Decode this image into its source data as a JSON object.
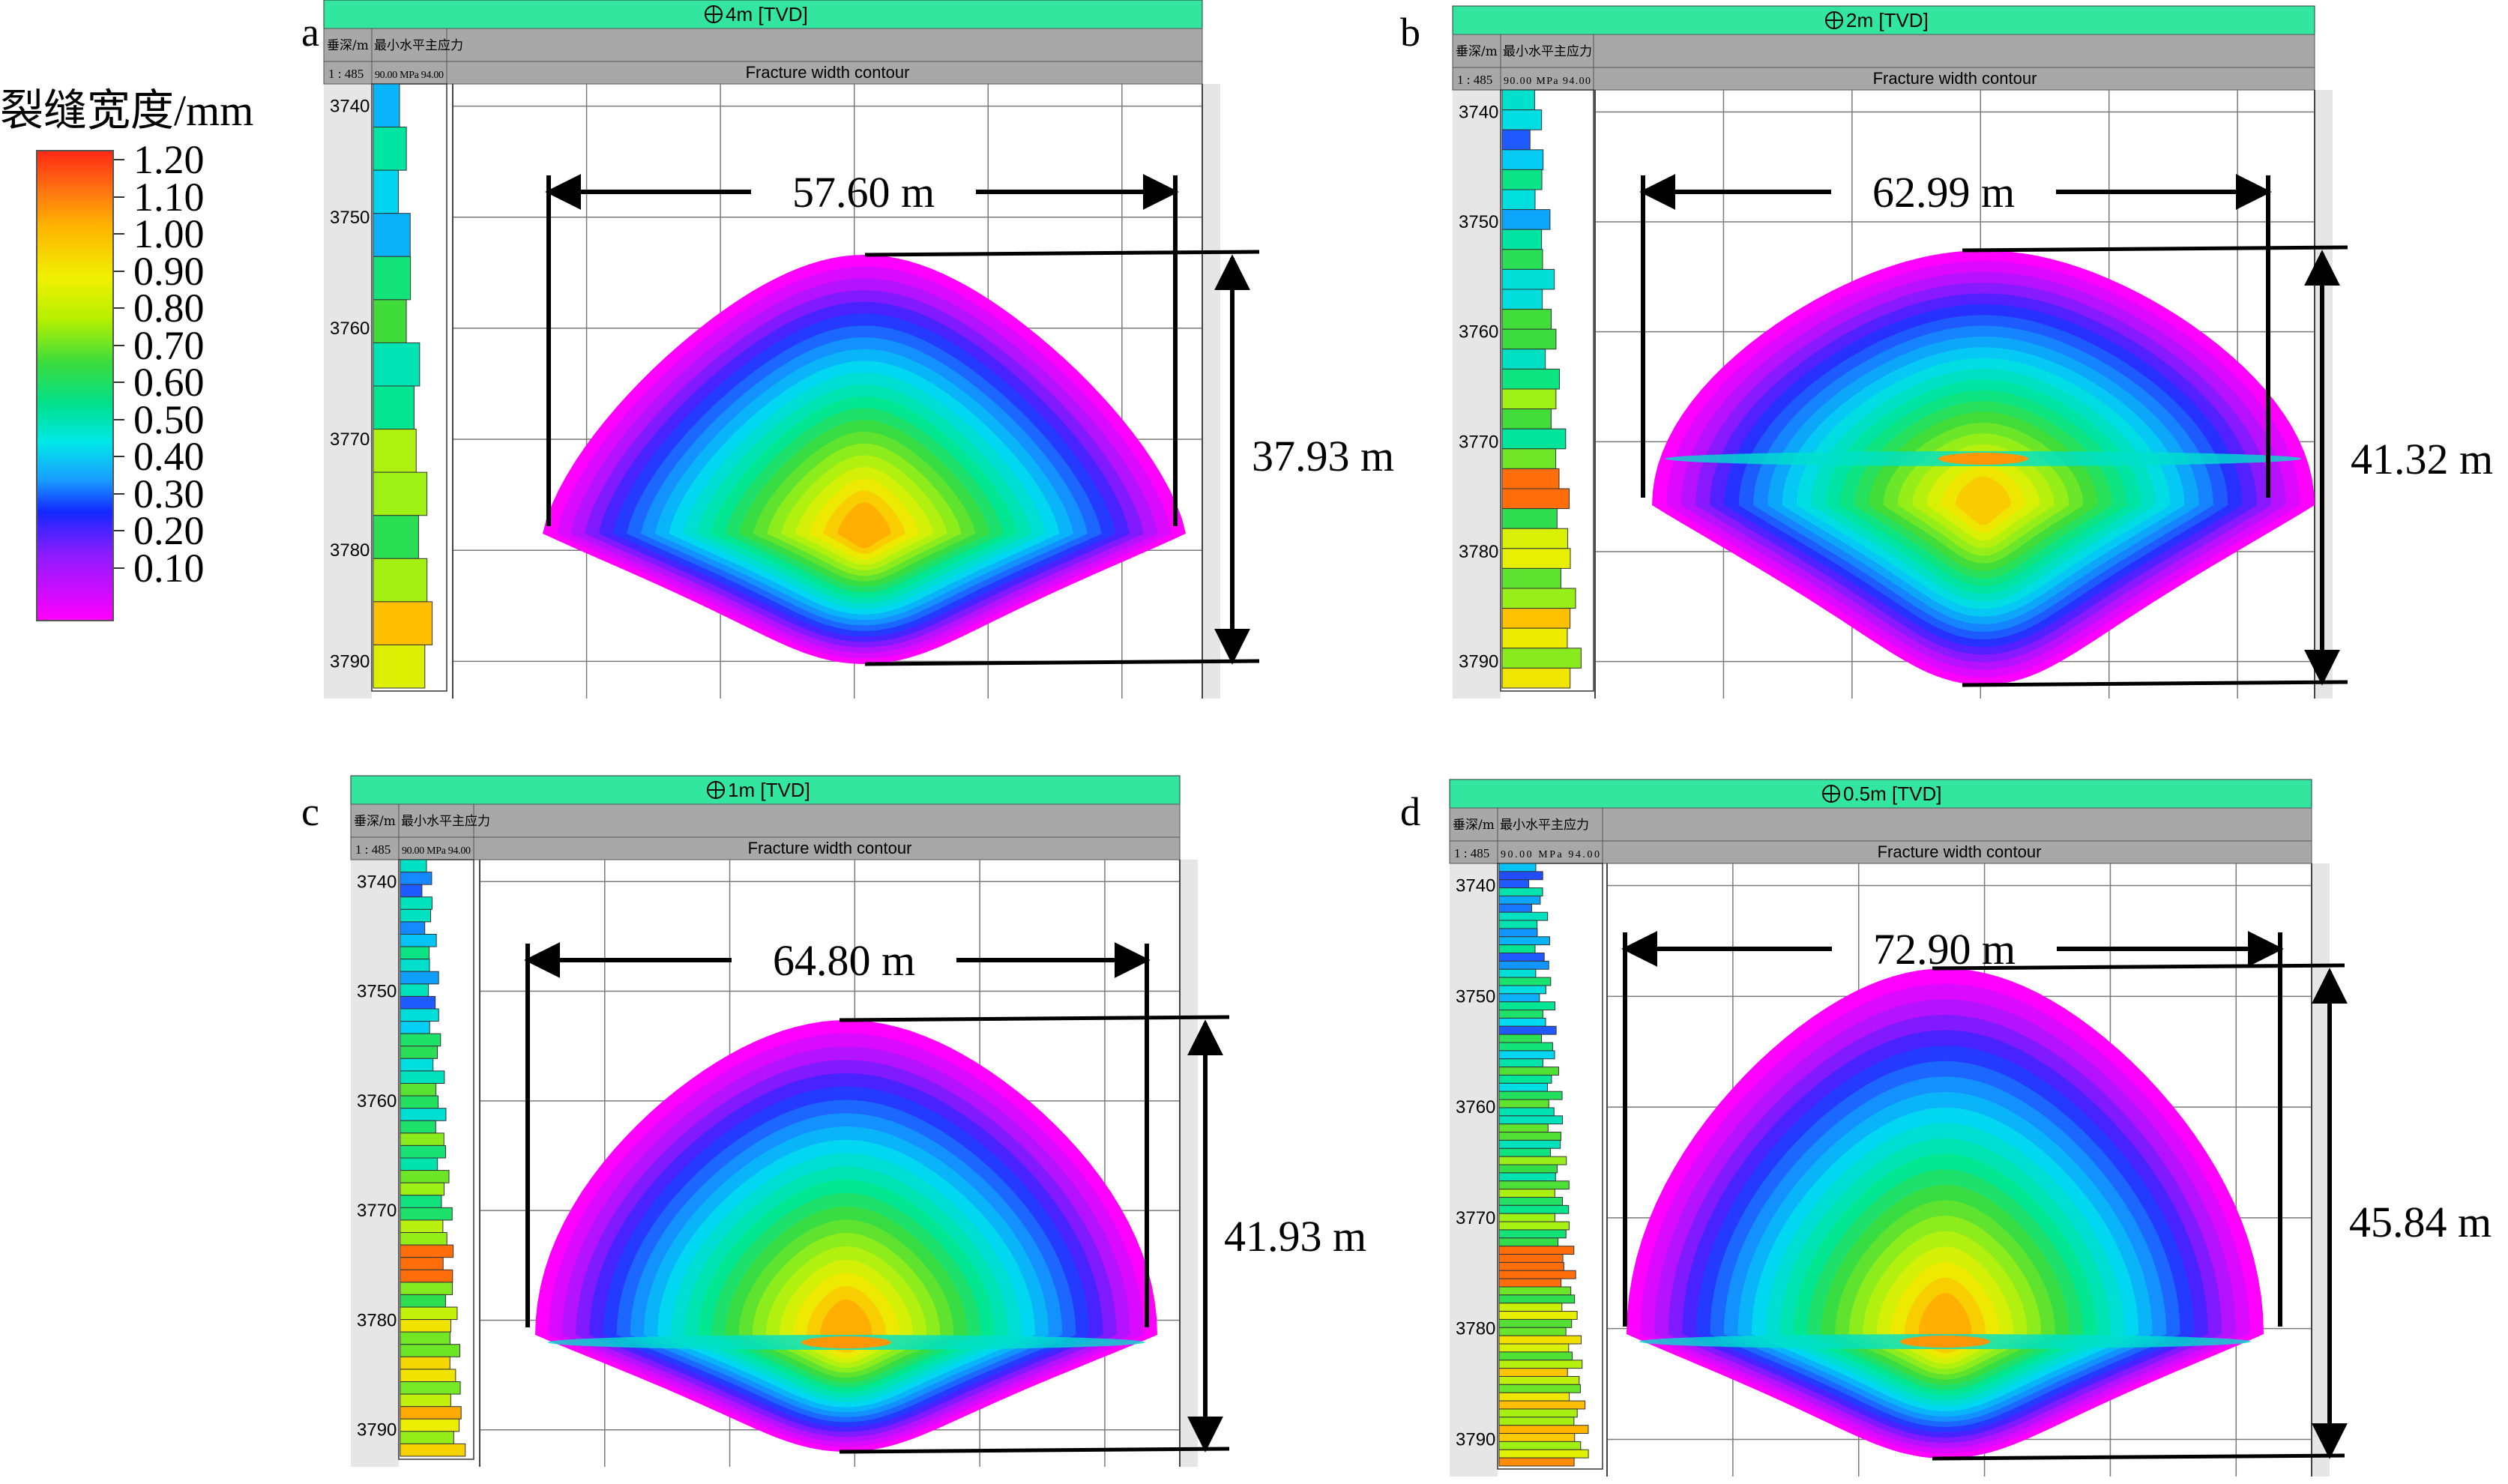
{
  "colorbar": {
    "title": "裂缝宽度/mm",
    "labels": [
      "1.20",
      "1.10",
      "1.00",
      "0.90",
      "0.80",
      "0.70",
      "0.60",
      "0.50",
      "0.40",
      "0.30",
      "0.20",
      "0.10"
    ]
  },
  "colors": {
    "header_green": "#33e6a0",
    "header_gray": "#a8a8a8",
    "track_gray": "#e6e6e6",
    "grid": "#7a7a7a"
  },
  "chart_data": [
    {
      "type": "heatmap",
      "panel": "a",
      "title": "4m [TVD]",
      "subtitle": "Fracture width contour",
      "depth_header": "垂深/m",
      "track_header": "最小水平主应力",
      "scale": "1 : 485",
      "track_scale": "90.00 MPa 94.00",
      "depth_ticks": [
        3740,
        3750,
        3760,
        3770,
        3780,
        3790
      ],
      "ylim": [
        3738,
        3792
      ],
      "fracture_length_label": "57.60 m",
      "fracture_height_label": "37.93 m",
      "fracture_length_m": 57.6,
      "fracture_height_m": 37.93,
      "fracture_top_depth": 3754,
      "fracture_bottom_depth": 3791.5,
      "max_width_mm": 1.1
    },
    {
      "type": "heatmap",
      "panel": "b",
      "title": "2m [TVD]",
      "subtitle": "Fracture width contour",
      "depth_header": "垂深/m",
      "track_header": "最小水平主应力",
      "scale": "1 : 485",
      "track_scale": "90.00 MPa 94.00",
      "depth_ticks": [
        3740,
        3750,
        3760,
        3770,
        3780,
        3790
      ],
      "ylim": [
        3738,
        3792
      ],
      "fracture_length_label": "62.99 m",
      "fracture_height_label": "41.32 m",
      "fracture_length_m": 62.99,
      "fracture_height_m": 41.32,
      "fracture_top_depth": 3752.5,
      "fracture_bottom_depth": 3793,
      "max_width_mm": 1.05
    },
    {
      "type": "heatmap",
      "panel": "c",
      "title": "1m [TVD]",
      "subtitle": "Fracture width contour",
      "depth_header": "垂深/m",
      "track_header": "最小水平主应力",
      "scale": "1 : 485",
      "track_scale": "90.00 MPa 94.00",
      "depth_ticks": [
        3740,
        3750,
        3760,
        3770,
        3780,
        3790
      ],
      "ylim": [
        3738,
        3792
      ],
      "fracture_length_label": "64.80 m",
      "fracture_height_label": "41.93 m",
      "fracture_length_m": 64.8,
      "fracture_height_m": 41.93,
      "fracture_top_depth": 3751.5,
      "fracture_bottom_depth": 3791.5,
      "max_width_mm": 1.1
    },
    {
      "type": "heatmap",
      "panel": "d",
      "title": "0.5m [TVD]",
      "subtitle": "Fracture width contour",
      "depth_header": "垂深/m",
      "track_header": "最小水平主应力",
      "scale": "1 : 485",
      "track_scale": "90.00 MPa 94.00",
      "depth_ticks": [
        3740,
        3750,
        3760,
        3770,
        3780,
        3790
      ],
      "ylim": [
        3738,
        3792
      ],
      "fracture_length_label": "72.90 m",
      "fracture_height_label": "45.84 m",
      "fracture_length_m": 72.9,
      "fracture_height_m": 45.84,
      "fracture_top_depth": 3748.5,
      "fracture_bottom_depth": 3792,
      "max_width_mm": 1.1
    }
  ]
}
